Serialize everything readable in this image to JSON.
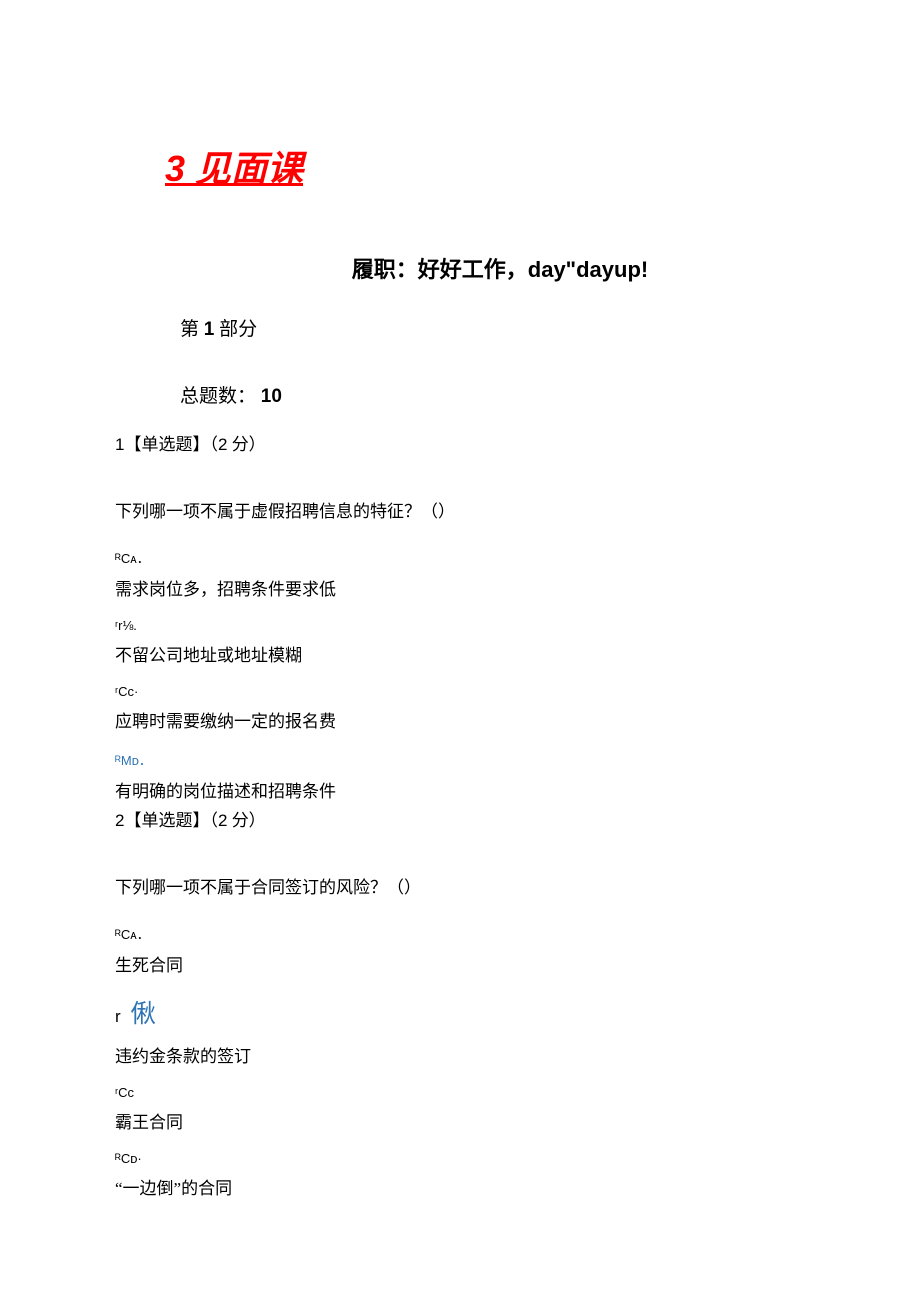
{
  "heading": "3 见面课",
  "subtitle": "履职：好好工作，day\"dayup!",
  "section": {
    "prefix": "第 ",
    "num": "1",
    "suffix": " 部分"
  },
  "total": {
    "label": "总题数： ",
    "value": "10"
  },
  "q1": {
    "num": "1",
    "tag": "【单选题】（",
    "points": "2",
    "points_suffix": " 分）",
    "text": "下列哪一项不属于虚假招聘信息的特征？（）",
    "optA_label": "ᴿCᴀ．",
    "optA_text": "需求岗位多，招聘条件要求低",
    "optB_label": "ʳr⅛.",
    "optB_text": "不留公司地址或地址模糊",
    "optC_label": "ʳCc·",
    "optC_text": "应聘时需要缴纳一定的报名费",
    "optD_label": "ᴿMᴅ．",
    "optD_text": "有明确的岗位描述和招聘条件"
  },
  "q2": {
    "num": "2",
    "tag": "【单选题】（",
    "points": "2",
    "points_suffix": " 分）",
    "text": "下列哪一项不属于合同签订的风险？（）",
    "optA_label": "ᴿCᴀ．",
    "optA_text": "生死合同",
    "optB_prefix": "r",
    "optB_label": "偢",
    "optB_text": "违约金条款的签订",
    "optC_label": "ʳCc",
    "optC_text": "霸王合同",
    "optD_label": "ᴿCᴅ·",
    "optD_text": "“一边倒”的合同"
  },
  "colors": {
    "heading": "#ff0000",
    "blue": "#2e74b5",
    "text": "#000000",
    "background": "#ffffff"
  },
  "typography": {
    "heading_fontsize": 36,
    "subtitle_fontsize": 22,
    "body_fontsize": 17,
    "label_fontsize": 13,
    "blue_large_fontsize": 25
  }
}
